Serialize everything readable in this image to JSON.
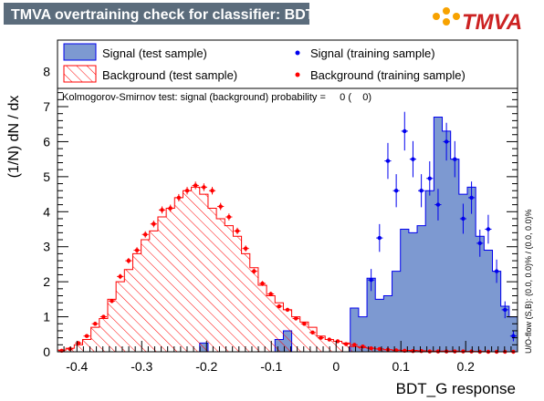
{
  "header": {
    "title": "TMVA overtraining check for classifier: BDT_G",
    "logo_text": "TMVA"
  },
  "chart_data": {
    "type": "histogram",
    "xlabel": "BDT_G response",
    "ylabel": "(1/N) dN / dx",
    "xlim": [
      -0.43,
      0.28
    ],
    "ylim": [
      0,
      8.9
    ],
    "x_ticks": [
      -0.4,
      -0.3,
      -0.2,
      -0.1,
      0,
      0.1,
      0.2
    ],
    "x_tick_labels": [
      "-0.4",
      "-0.3",
      "-0.2",
      "-0.1",
      "0",
      "0.1",
      "0.2"
    ],
    "y_ticks": [
      0,
      1,
      2,
      3,
      4,
      5,
      6,
      7,
      8
    ],
    "y_tick_labels": [
      "0",
      "1",
      "2",
      "3",
      "4",
      "5",
      "6",
      "7",
      "8"
    ],
    "bin_edges_range": [
      -0.43,
      0.28
    ],
    "bin_width": 0.0142,
    "legend": {
      "signal_test": "Signal (test sample)",
      "background_test": "Background (test sample)",
      "signal_train": "Signal (training sample)",
      "background_train": "Background (training sample)"
    },
    "ks_text": "Kolmogorov-Smirnov test: signal (background) probability =     0 (    0)",
    "overflow_text": "U/O-flow (S,B): (0.0, 0.0)% / (0.0, 0.0)%",
    "colors": {
      "signal_fill": "#7d99d1",
      "signal_line": "#0000ee",
      "background_hatch": "#ff0000",
      "background_line": "#ff0000",
      "signal_marker": "#0000ee",
      "background_marker": "#ff0000"
    },
    "signal_test": [
      0,
      0,
      0,
      0,
      0,
      0,
      0,
      0,
      0,
      0,
      0,
      0,
      0,
      0,
      0,
      0,
      0,
      0.25,
      0,
      0,
      0,
      0,
      0,
      0,
      0,
      0,
      0.35,
      0.6,
      0,
      0,
      0,
      0,
      0,
      0,
      0,
      1.25,
      1.0,
      2.1,
      1.5,
      1.6,
      2.3,
      3.5,
      3.4,
      3.6,
      4.6,
      6.7,
      6.3,
      5.5,
      4.5,
      4.7,
      3.3,
      2.9,
      2.3,
      1.3,
      1.0
    ],
    "background_test": [
      0.05,
      0.1,
      0.2,
      0.35,
      0.7,
      0.95,
      1.5,
      2.0,
      2.35,
      2.8,
      3.2,
      3.45,
      3.85,
      4.1,
      4.4,
      4.6,
      4.7,
      4.5,
      4.1,
      3.8,
      3.6,
      3.3,
      2.8,
      2.4,
      1.9,
      1.6,
      1.4,
      1.2,
      1.0,
      0.85,
      0.7,
      0.45,
      0.35,
      0.3,
      0.25,
      0.15,
      0.12,
      0.1,
      0.08,
      0.06,
      0.05,
      0.04,
      0.04,
      0.03,
      0.02,
      0.02,
      0.02,
      0.02,
      0.01,
      0.01,
      0.01,
      0,
      0,
      0,
      0
    ],
    "signal_train": [
      null,
      null,
      null,
      null,
      null,
      null,
      null,
      null,
      null,
      null,
      null,
      null,
      null,
      null,
      null,
      null,
      null,
      null,
      null,
      null,
      null,
      null,
      null,
      null,
      null,
      null,
      null,
      null,
      null,
      null,
      null,
      null,
      null,
      null,
      null,
      null,
      null,
      2.05,
      3.25,
      5.45,
      4.6,
      6.3,
      5.5,
      4.6,
      4.95,
      4.2,
      6.0,
      5.5,
      3.8,
      4.4,
      3.1,
      3.5,
      2.3,
      1.2,
      0.45
    ],
    "background_train": [
      0.03,
      0.08,
      0.25,
      0.45,
      0.8,
      1.0,
      1.45,
      2.15,
      2.6,
      2.9,
      3.35,
      3.65,
      4.05,
      4.1,
      4.4,
      4.6,
      4.75,
      4.7,
      4.6,
      4.15,
      3.85,
      3.45,
      2.95,
      2.3,
      1.95,
      1.65,
      1.3,
      1.2,
      0.95,
      0.8,
      0.55,
      0.4,
      0.35,
      0.3,
      0.22,
      0.2,
      0.15,
      0.1,
      0.08,
      0.06,
      0.04,
      0.03,
      0.02,
      0.02,
      0.01,
      0.01,
      0.01,
      0.01,
      0.01,
      0.01,
      0,
      0,
      0,
      0,
      0
    ]
  }
}
